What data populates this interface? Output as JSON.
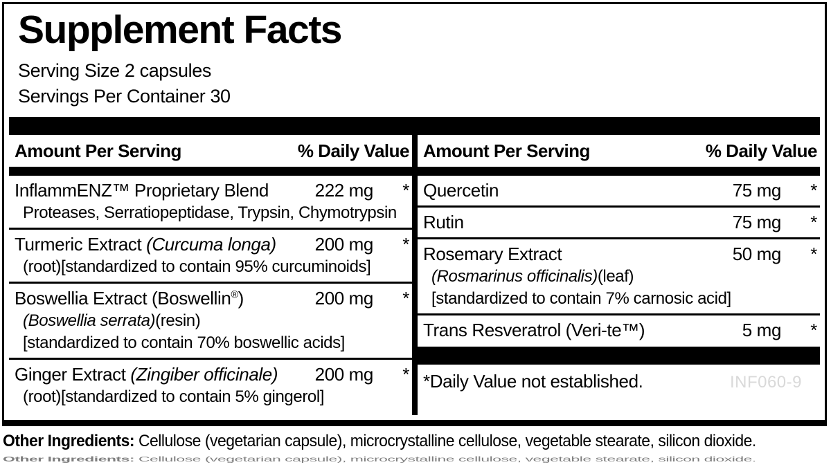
{
  "colors": {
    "ink": "#000000",
    "product_code_gray": "#d9d9d9"
  },
  "header": {
    "title": "Supplement Facts",
    "serving_size": "Serving Size 2 capsules",
    "servings_per_container": "Servings Per Container 30"
  },
  "table": {
    "columns": [
      {
        "header": {
          "amount": "Amount Per Serving",
          "daily_value": "% Daily Value"
        },
        "rows": [
          {
            "name": [
              {
                "t": "InflammENZ™ Proprietary Blend"
              }
            ],
            "amount": "222 mg",
            "dv": "*",
            "subs": [
              [
                {
                  "t": "Proteases, Serratiopeptidase, Trypsin, Chymotrypsin"
                }
              ]
            ]
          },
          {
            "name": [
              {
                "t": "Turmeric Extract "
              },
              {
                "t": "(Curcuma longa)",
                "i": true
              }
            ],
            "amount": "200 mg",
            "dv": "*",
            "subs": [
              [
                {
                  "t": "(root)[standardized to contain 95% curcuminoids]"
                }
              ]
            ]
          },
          {
            "name": [
              {
                "t": "Boswellia Extract (Boswellin"
              },
              {
                "t": "®",
                "sup": true
              },
              {
                "t": ")"
              }
            ],
            "amount": "200 mg",
            "dv": "*",
            "subs": [
              [
                {
                  "t": "(Boswellia serrata)",
                  "i": true
                },
                {
                  "t": "(resin)"
                }
              ],
              [
                {
                  "t": "[standardized to contain 70% boswellic acids]"
                }
              ]
            ]
          },
          {
            "name": [
              {
                "t": "Ginger Extract "
              },
              {
                "t": "(Zingiber officinale)",
                "i": true
              }
            ],
            "amount": "200 mg",
            "dv": "*",
            "subs": [
              [
                {
                  "t": "(root)[standardized to contain 5% gingerol]"
                }
              ]
            ]
          }
        ]
      },
      {
        "header": {
          "amount": "Amount Per Serving",
          "daily_value": "% Daily Value"
        },
        "rows": [
          {
            "name": [
              {
                "t": "Quercetin"
              }
            ],
            "amount": "75 mg",
            "dv": "*",
            "subs": []
          },
          {
            "name": [
              {
                "t": "Rutin"
              }
            ],
            "amount": "75 mg",
            "dv": "*",
            "subs": []
          },
          {
            "name": [
              {
                "t": "Rosemary Extract"
              }
            ],
            "amount": "50 mg",
            "dv": "*",
            "subs": [
              [
                {
                  "t": "(Rosmarinus officinalis)",
                  "i": true
                },
                {
                  "t": "(leaf)"
                }
              ],
              [
                {
                  "t": "[standardized to contain 7% carnosic acid]"
                }
              ]
            ]
          },
          {
            "name": [
              {
                "t": "Trans Resveratrol (Veri-te™)"
              }
            ],
            "amount": "5 mg",
            "dv": "*",
            "subs": []
          }
        ],
        "footnote": "*Daily Value not established.",
        "code": "INF060-9"
      }
    ]
  },
  "other_ingredients": {
    "label": "Other Ingredients:",
    "text": " Cellulose (vegetarian capsule), microcrystalline cellulose, vegetable stearate, silicon dioxide."
  }
}
